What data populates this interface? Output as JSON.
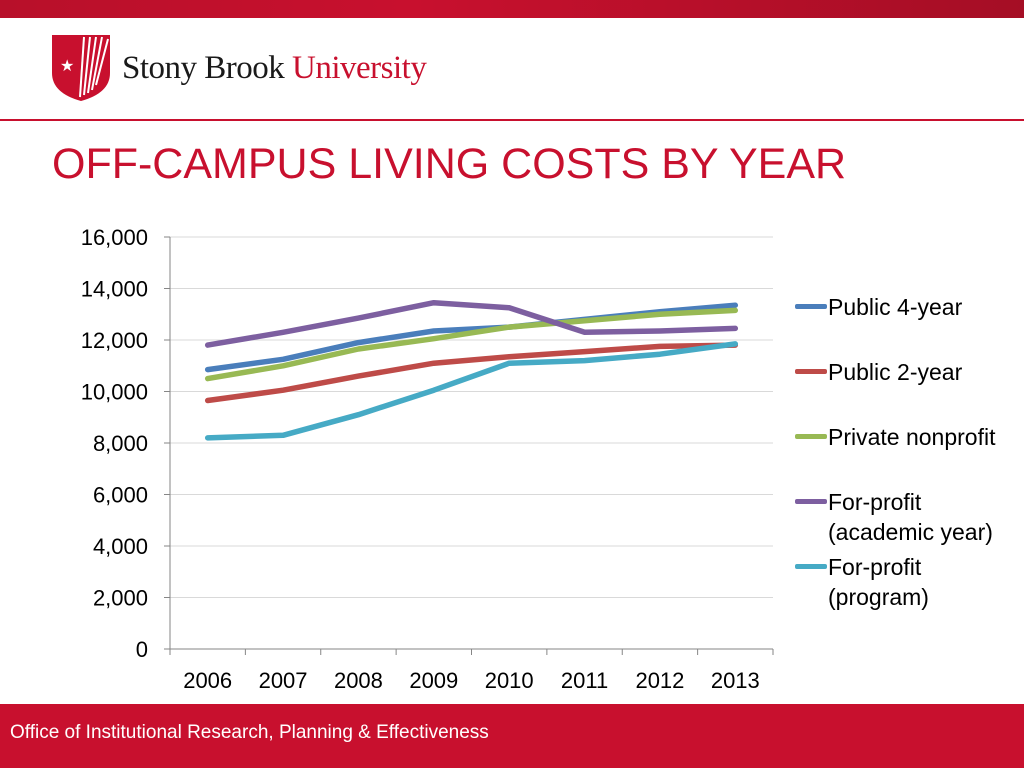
{
  "header": {
    "logo_text_primary": "Stony Brook",
    "logo_text_secondary": "University",
    "brand_color": "#c8102e"
  },
  "slide": {
    "title": "OFF-CAMPUS LIVING COSTS BY YEAR"
  },
  "footer": {
    "text": "Office of Institutional Research, Planning & Effectiveness"
  },
  "chart_data": {
    "type": "line",
    "title": "",
    "xlabel": "",
    "ylabel": "",
    "categories": [
      "2006",
      "2007",
      "2008",
      "2009",
      "2010",
      "2011",
      "2012",
      "2013"
    ],
    "ylim": [
      0,
      16000
    ],
    "yticks": [
      0,
      2000,
      4000,
      6000,
      8000,
      10000,
      12000,
      14000,
      16000
    ],
    "ytick_labels": [
      "0",
      "2,000",
      "4,000",
      "6,000",
      "8,000",
      "10,000",
      "12,000",
      "14,000",
      "16,000"
    ],
    "grid": true,
    "legend_position": "right",
    "series": [
      {
        "name": "Public 4-year",
        "color": "#4a7ebb",
        "values": [
          10850,
          11250,
          11900,
          12350,
          12500,
          12800,
          13100,
          13350
        ]
      },
      {
        "name": "Public 2-year",
        "color": "#be4b48",
        "values": [
          9650,
          10050,
          10600,
          11100,
          11350,
          11550,
          11750,
          11800
        ]
      },
      {
        "name": "Private nonprofit",
        "color": "#98b954",
        "values": [
          10500,
          11000,
          11650,
          12050,
          12500,
          12750,
          13000,
          13150
        ]
      },
      {
        "name": "For-profit (academic year)",
        "color": "#7d5fa0",
        "values": [
          11800,
          12300,
          12850,
          13450,
          13250,
          12300,
          12350,
          12450
        ]
      },
      {
        "name": "For-profit (program)",
        "color": "#46aac5",
        "values": [
          8200,
          8300,
          9100,
          10050,
          11100,
          11200,
          11450,
          11850
        ]
      }
    ]
  }
}
